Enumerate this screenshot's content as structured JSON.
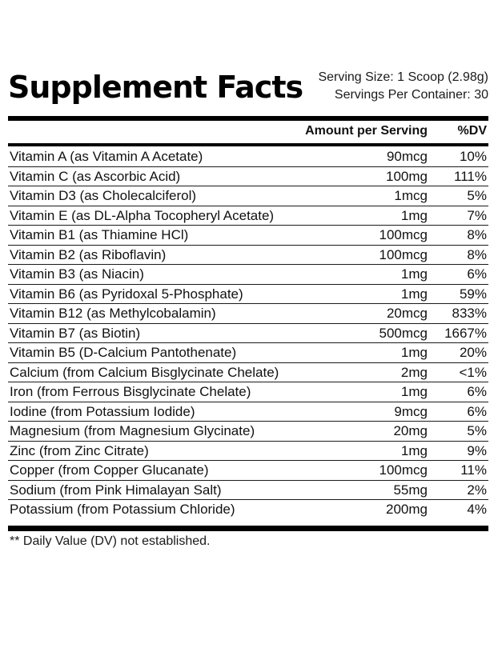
{
  "title": "Supplement Facts",
  "serving_size": "Serving Size: 1 Scoop (2.98g)",
  "servings_per_container": "Servings Per Container: 30",
  "header": {
    "amount": "Amount per Serving",
    "dv": "%DV"
  },
  "rows": [
    {
      "name": "Vitamin A (as Vitamin A Acetate)",
      "amount": "90mcg",
      "dv": "10%"
    },
    {
      "name": "Vitamin C (as Ascorbic Acid)",
      "amount": "100mg",
      "dv": "111%"
    },
    {
      "name": "Vitamin D3 (as Cholecalciferol)",
      "amount": "1mcg",
      "dv": "5%"
    },
    {
      "name": "Vitamin E (as DL-Alpha Tocopheryl Acetate)",
      "amount": "1mg",
      "dv": "7%"
    },
    {
      "name": "Vitamin B1 (as Thiamine HCl)",
      "amount": "100mcg",
      "dv": "8%"
    },
    {
      "name": "Vitamin B2 (as Riboflavin)",
      "amount": "100mcg",
      "dv": "8%"
    },
    {
      "name": "Vitamin B3 (as Niacin)",
      "amount": "1mg",
      "dv": "6%"
    },
    {
      "name": "Vitamin B6 (as Pyridoxal 5-Phosphate)",
      "amount": "1mg",
      "dv": "59%"
    },
    {
      "name": "Vitamin B12 (as Methylcobalamin)",
      "amount": "20mcg",
      "dv": "833%"
    },
    {
      "name": "Vitamin B7 (as Biotin)",
      "amount": "500mcg",
      "dv": "1667%"
    },
    {
      "name": "Vitamin B5 (D-Calcium Pantothenate)",
      "amount": "1mg",
      "dv": "20%"
    },
    {
      "name": "Calcium (from Calcium Bisglycinate Chelate)",
      "amount": "2mg",
      "dv": "<1%"
    },
    {
      "name": "Iron (from Ferrous Bisglycinate Chelate)",
      "amount": "1mg",
      "dv": "6%"
    },
    {
      "name": "Iodine (from Potassium Iodide)",
      "amount": "9mcg",
      "dv": "6%"
    },
    {
      "name": "Magnesium (from Magnesium Glycinate)",
      "amount": "20mg",
      "dv": "5%"
    },
    {
      "name": "Zinc (from Zinc Citrate)",
      "amount": "1mg",
      "dv": "9%"
    },
    {
      "name": "Copper (from Copper Glucanate)",
      "amount": "100mcg",
      "dv": "11%"
    },
    {
      "name": "Sodium (from Pink Himalayan Salt)",
      "amount": "55mg",
      "dv": "2%"
    },
    {
      "name": "Potassium (from Potassium Chloride)",
      "amount": "200mg",
      "dv": "4%"
    }
  ],
  "footnote": "** Daily Value (DV) not established."
}
